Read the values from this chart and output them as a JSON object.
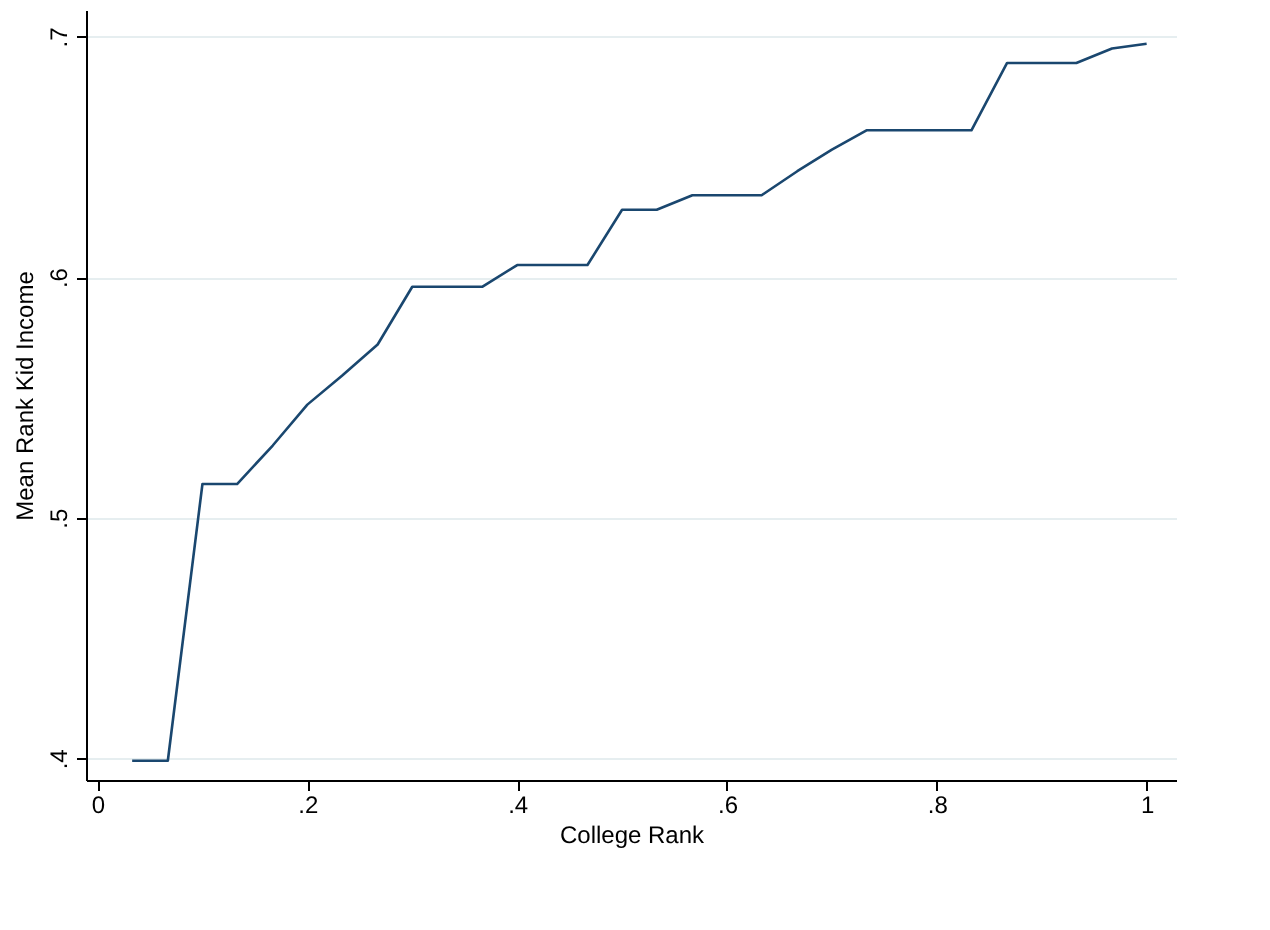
{
  "chart_data": {
    "type": "line",
    "xlabel": "College Rank",
    "ylabel": "Mean Rank Kid Income",
    "x": [
      0.033,
      0.067,
      0.1,
      0.133,
      0.167,
      0.2,
      0.233,
      0.267,
      0.3,
      0.333,
      0.367,
      0.4,
      0.433,
      0.467,
      0.5,
      0.533,
      0.567,
      0.6,
      0.633,
      0.667,
      0.7,
      0.733,
      0.767,
      0.8,
      0.833,
      0.867,
      0.9,
      0.933,
      0.967,
      1.0
    ],
    "series": [
      {
        "color": "#1a476f",
        "values": [
          0.399,
          0.399,
          0.514,
          0.514,
          0.53,
          0.547,
          0.559,
          0.572,
          0.596,
          0.596,
          0.596,
          0.605,
          0.605,
          0.605,
          0.628,
          0.628,
          0.634,
          0.634,
          0.634,
          0.644,
          0.653,
          0.661,
          0.661,
          0.661,
          0.661,
          0.689,
          0.689,
          0.689,
          0.695,
          0.697
        ]
      }
    ],
    "xlim": [
      -0.011,
      1.028
    ],
    "ylim": [
      0.391,
      0.711
    ],
    "xticks": [
      0,
      {
        "value": 0.2,
        "label": ".2"
      },
      {
        "value": 0.4,
        "label": ".4"
      },
      {
        "value": 0.6,
        "label": ".6"
      },
      {
        "value": 0.8,
        "label": ".8"
      },
      1
    ],
    "yticks": [
      {
        "value": 0.4,
        "label": ".4"
      },
      {
        "value": 0.5,
        "label": ".5"
      },
      {
        "value": 0.6,
        "label": ".6"
      },
      {
        "value": 0.7,
        "label": ".7"
      }
    ],
    "grid": "y",
    "marker": "none",
    "line_style": "solid"
  }
}
